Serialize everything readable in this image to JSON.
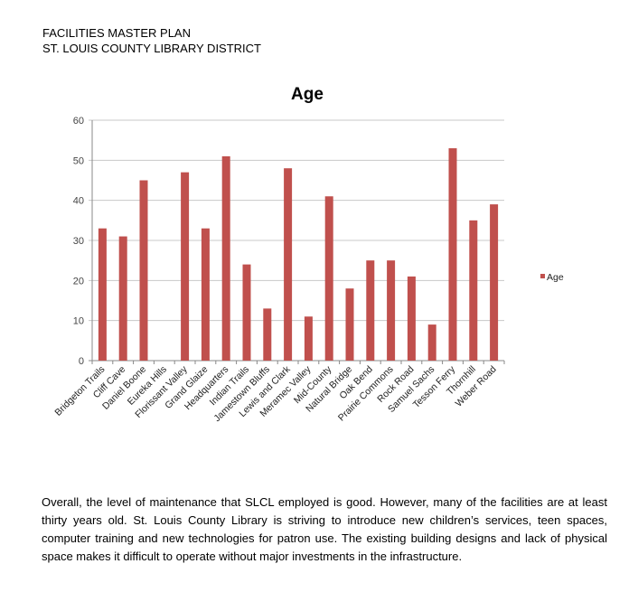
{
  "header": {
    "line1": "FACILITIES MASTER PLAN",
    "line2": "ST. LOUIS COUNTY LIBRARY DISTRICT"
  },
  "chart_data": {
    "type": "bar",
    "title": "Age",
    "xlabel": "",
    "ylabel": "",
    "ylim": [
      0,
      60
    ],
    "yticks": [
      0,
      10,
      20,
      30,
      40,
      50,
      60
    ],
    "grid": true,
    "legend": "right",
    "color": "#c0504d",
    "categories": [
      "Bridgeton Trails",
      "Cliff Cave",
      "Daniel Boone",
      "Eureka Hills",
      "Florissant Valley",
      "Grand Glaize",
      "Headquarters",
      "Indian Trails",
      "Jamestown Bluffs",
      "Lewis and Clark",
      "Meramec Valley",
      "Mid-County",
      "Natural Bridge",
      "Oak Bend",
      "Prairie Commons",
      "Rock Road",
      "Samuel Sachs",
      "Tesson Ferry",
      "Thornhill",
      "Weber Road"
    ],
    "series": [
      {
        "name": "Age",
        "values": [
          33,
          31,
          45,
          0,
          47,
          33,
          51,
          24,
          13,
          48,
          11,
          41,
          18,
          25,
          25,
          21,
          9,
          53,
          35,
          39
        ]
      }
    ]
  },
  "body_text": "Overall, the level of maintenance that SLCL employed is good.  However, many of the facilities are at least thirty years old. St. Louis County Library is striving to introduce new children’s services, teen spaces, computer training and new technologies for patron use. The existing building designs and lack of physical space makes it difficult to operate without major investments in the infrastructure."
}
